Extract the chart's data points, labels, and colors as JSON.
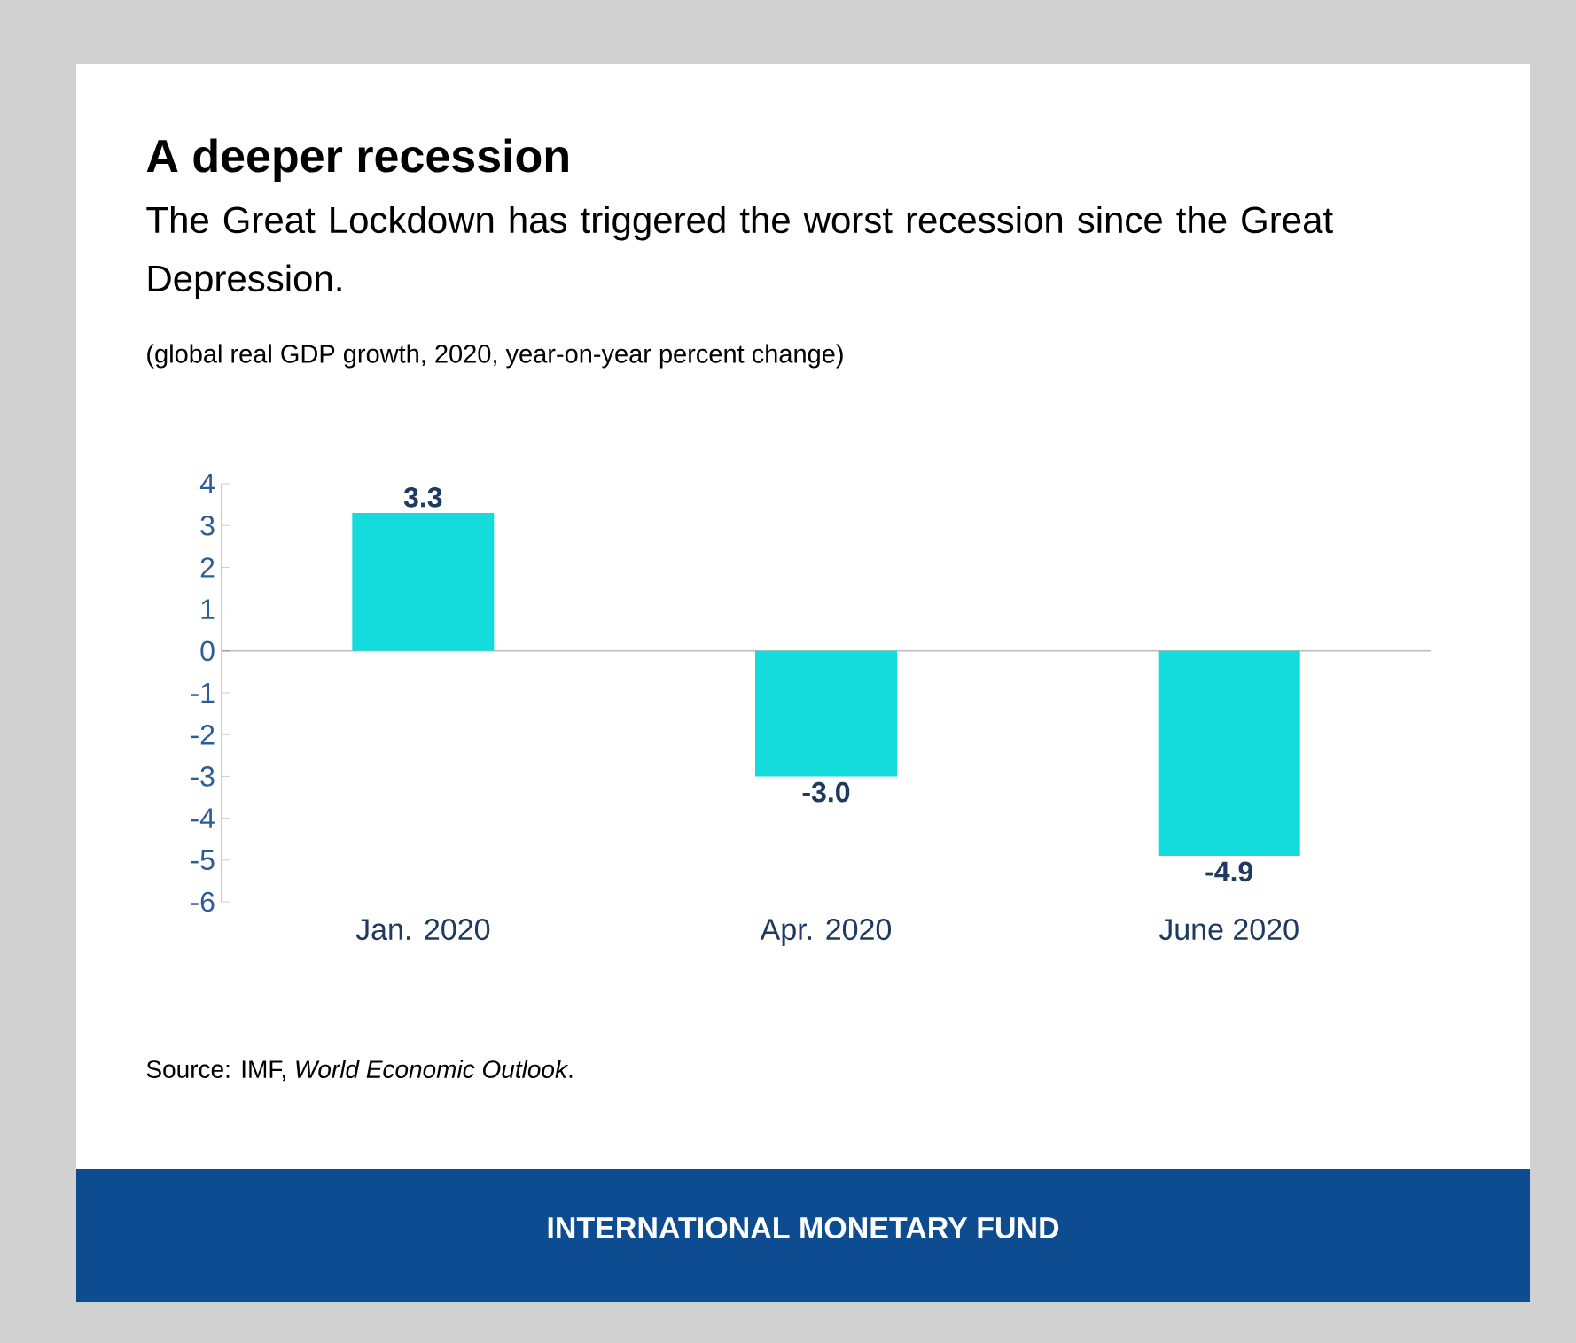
{
  "chart_data": {
    "type": "bar",
    "title": "A deeper recession",
    "subtitle": "The Great Lockdown has triggered the worst recession since the Great Depression.",
    "annotations": [
      "(global real GDP growth, 2020, year-on-year percent change)",
      "Source: IMF, *World Economic Outlook*.",
      "INTERNATIONAL MONETARY FUND"
    ],
    "categories": [
      "Jan. 2020",
      "Apr. 2020",
      "June 2020"
    ],
    "values": [
      3.3,
      -3.0,
      -4.9
    ],
    "value_labels": [
      "3.3",
      "-3.0",
      "-4.9"
    ],
    "color": "#14dcdc",
    "ylim": [
      -6,
      4
    ],
    "yticks": [
      -6,
      -5,
      -4,
      -3,
      -2,
      -1,
      0,
      1,
      2,
      3,
      4
    ]
  }
}
